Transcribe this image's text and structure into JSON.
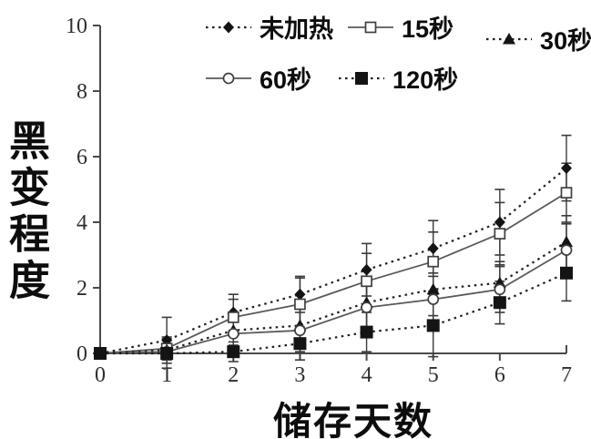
{
  "chart_data": {
    "type": "line",
    "title": "",
    "xlabel": "储存天数",
    "ylabel": "黑变程度",
    "xlim": [
      0,
      7
    ],
    "ylim": [
      0,
      10
    ],
    "x": [
      0,
      1,
      2,
      3,
      4,
      5,
      6,
      7
    ],
    "xticks": [
      0,
      1,
      2,
      3,
      4,
      5,
      6,
      7
    ],
    "yticks": [
      0,
      2,
      4,
      6,
      8,
      10
    ],
    "grid": false,
    "legend_position": "top-center",
    "colors": {
      "axis": "#4a4a4a",
      "solid_line": "#5a5a5a",
      "dotted_line": "#1f1f1f",
      "marker_fill": "#141414",
      "marker_stroke": "#3f3f3f",
      "error_bar": "#3a3a3a",
      "text": "#0d0d0d"
    },
    "series": [
      {
        "name": "未加热",
        "key": "unheated",
        "marker": "diamond-filled",
        "line": "dotted",
        "values": [
          0,
          0.4,
          1.25,
          1.8,
          2.55,
          3.2,
          4.0,
          5.65
        ],
        "errors": [
          0,
          0.7,
          0.55,
          0.55,
          0.8,
          0.85,
          1.0,
          1.0
        ]
      },
      {
        "name": "15秒",
        "key": "15s",
        "marker": "square-open",
        "line": "solid",
        "values": [
          0,
          0.15,
          1.1,
          1.5,
          2.2,
          2.8,
          3.65,
          4.9
        ],
        "errors": [
          0,
          0.35,
          0.55,
          0.8,
          0.85,
          0.9,
          0.95,
          0.9
        ]
      },
      {
        "name": "30秒",
        "key": "30s",
        "marker": "triangle-filled",
        "line": "dotted",
        "values": [
          0,
          0.1,
          0.7,
          0.85,
          1.55,
          1.95,
          2.15,
          3.4
        ],
        "errors": [
          0,
          0.3,
          0.45,
          0.7,
          0.75,
          0.8,
          0.65,
          0.8
        ]
      },
      {
        "name": "60秒",
        "key": "60s",
        "marker": "circle-open",
        "line": "solid",
        "values": [
          0,
          0.05,
          0.6,
          0.7,
          1.4,
          1.65,
          1.95,
          3.15
        ],
        "errors": [
          0,
          0.25,
          0.4,
          0.65,
          0.7,
          0.8,
          0.7,
          0.8
        ]
      },
      {
        "name": "120秒",
        "key": "120s",
        "marker": "square-filled",
        "line": "dotted",
        "values": [
          0,
          0,
          0.05,
          0.3,
          0.65,
          0.85,
          1.55,
          2.45
        ],
        "errors": [
          0,
          0.45,
          0.3,
          0.5,
          0.6,
          0.95,
          0.65,
          0.85
        ]
      }
    ],
    "legend_rows": [
      [
        0,
        1,
        2
      ],
      [
        3,
        4
      ]
    ]
  }
}
